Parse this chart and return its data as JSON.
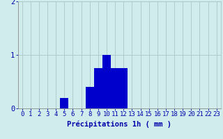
{
  "hours": [
    0,
    1,
    2,
    3,
    4,
    5,
    6,
    7,
    8,
    9,
    10,
    11,
    12,
    13,
    14,
    15,
    16,
    17,
    18,
    19,
    20,
    21,
    22,
    23
  ],
  "values": [
    0,
    0,
    0,
    0,
    0,
    0.2,
    0,
    0,
    0.4,
    0.75,
    1.0,
    0.75,
    0.75,
    0,
    0,
    0,
    0,
    0,
    0,
    0,
    0,
    0,
    0,
    0
  ],
  "bar_color": "#0000cc",
  "background_color": "#d0ecec",
  "grid_color": "#aac8c8",
  "axis_color": "#0000aa",
  "xlabel": "Précipitations 1h ( mm )",
  "xlabel_fontsize": 7.5,
  "ylim": [
    0,
    2
  ],
  "yticks": [
    0,
    1,
    2
  ],
  "xtick_labels": [
    "0",
    "1",
    "2",
    "3",
    "4",
    "5",
    "6",
    "7",
    "8",
    "9",
    "10",
    "11",
    "12",
    "13",
    "14",
    "15",
    "16",
    "17",
    "18",
    "19",
    "20",
    "21",
    "22",
    "23"
  ],
  "tick_fontsize": 6.5
}
